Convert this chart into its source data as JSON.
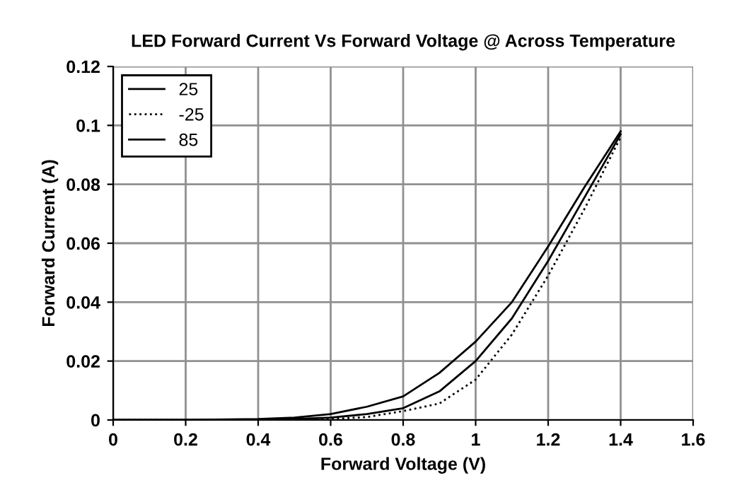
{
  "chart_data": {
    "type": "line",
    "title": "LED Forward Current Vs Forward Voltage @ Across Temperature",
    "xlabel": "Forward Voltage (V)",
    "ylabel": "Forward Current (A)",
    "x": [
      0,
      0.2,
      0.4,
      0.5,
      0.6,
      0.7,
      0.8,
      0.9,
      1.0,
      1.1,
      1.2,
      1.3,
      1.4
    ],
    "series": [
      {
        "name": "25",
        "color": "#000000",
        "line_style": "solid",
        "values": [
          0,
          0,
          0.0001,
          0.0003,
          0.0008,
          0.002,
          0.004,
          0.0097,
          0.02,
          0.0345,
          0.054,
          0.0755,
          0.097
        ]
      },
      {
        "name": "-25",
        "color": "#000000",
        "line_style": "dotted",
        "values": [
          0,
          0,
          0,
          0.0001,
          0.0003,
          0.001,
          0.003,
          0.0056,
          0.0137,
          0.029,
          0.049,
          0.0716,
          0.096
        ]
      },
      {
        "name": "85",
        "color": "#000000",
        "line_style": "solid",
        "values": [
          0,
          0,
          0.0003,
          0.0008,
          0.002,
          0.0045,
          0.008,
          0.016,
          0.0266,
          0.04,
          0.0589,
          0.079,
          0.098
        ]
      }
    ],
    "xlim": [
      0,
      1.6
    ],
    "ylim": [
      0,
      0.12
    ],
    "xticks": [
      0,
      0.2,
      0.4,
      0.6,
      0.8,
      1,
      1.2,
      1.4,
      1.6
    ],
    "yticks": [
      0,
      0.02,
      0.04,
      0.06,
      0.08,
      0.1,
      0.12
    ],
    "grid": true,
    "legend": "top left",
    "marker": "none"
  }
}
